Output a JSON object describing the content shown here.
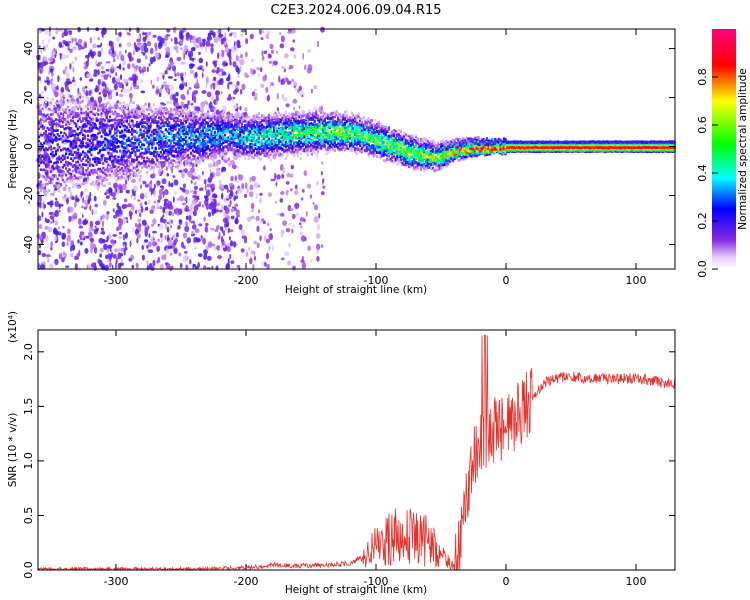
{
  "title": "C2E3.2024.006.09.04.R15",
  "chart_data": [
    {
      "type": "heatmap",
      "xlabel": "Height of straight line (km)",
      "ylabel": "Frequency (Hz)",
      "xlim": [
        -360,
        130
      ],
      "ylim": [
        -50,
        48
      ],
      "xticks": [
        -300,
        -200,
        -100,
        0,
        100
      ],
      "yticks": [
        -40,
        -20,
        0,
        20,
        40
      ],
      "colorbar": {
        "label": "Normalized spectral amplitude",
        "range": [
          0.0,
          1.0
        ],
        "ticks": [
          0.0,
          0.2,
          0.4,
          0.6,
          0.8
        ]
      },
      "signal_band": [
        {
          "x": -360,
          "center": 0,
          "width": 48,
          "amp": 0.2
        },
        {
          "x": -215,
          "center": 5,
          "width": 15,
          "amp": 0.35
        },
        {
          "x": -195,
          "center": 4,
          "width": 16,
          "amp": 0.4
        },
        {
          "x": -150,
          "center": 6,
          "width": 14,
          "amp": 0.5
        },
        {
          "x": -120,
          "center": 6,
          "width": 12,
          "amp": 0.55
        },
        {
          "x": -100,
          "center": 3,
          "width": 11,
          "amp": 0.55
        },
        {
          "x": -75,
          "center": -2,
          "width": 10,
          "amp": 0.6
        },
        {
          "x": -55,
          "center": -4,
          "width": 8,
          "amp": 0.6
        },
        {
          "x": -35,
          "center": -1,
          "width": 5,
          "amp": 0.75
        },
        {
          "x": -20,
          "center": 0,
          "width": 4,
          "amp": 0.9
        },
        {
          "x": 0,
          "center": 0,
          "width": 3,
          "amp": 0.92
        },
        {
          "x": 50,
          "center": 0,
          "width": 3,
          "amp": 0.95
        },
        {
          "x": 130,
          "center": 0,
          "width": 3,
          "amp": 0.95
        }
      ]
    },
    {
      "type": "line",
      "xlabel": "Height of straight line (km)",
      "ylabel": "SNR (10 * v/v)",
      "yscale_label": "(x10⁴)",
      "xlim": [
        -360,
        130
      ],
      "ylim": [
        0.0,
        2.2
      ],
      "xticks": [
        -300,
        -200,
        -100,
        0,
        100
      ],
      "yticks": [
        0.0,
        0.5,
        1.0,
        1.5,
        2.0
      ],
      "series": [
        {
          "color": "#e8302b",
          "x": [
            -360,
            -300,
            -250,
            -200,
            -190,
            -180,
            -170,
            -150,
            -120,
            -110,
            -100,
            -90,
            -80,
            -70,
            -60,
            -55,
            -50,
            -45,
            -40,
            -35,
            -30,
            -25,
            -20,
            -15,
            -10,
            -5,
            0,
            5,
            10,
            15,
            20,
            25,
            30,
            40,
            50,
            60,
            80,
            100,
            120,
            130
          ],
          "y": [
            0.01,
            0.01,
            0.01,
            0.02,
            0.03,
            0.05,
            0.04,
            0.04,
            0.06,
            0.12,
            0.22,
            0.28,
            0.32,
            0.3,
            0.28,
            0.22,
            0.14,
            0.08,
            0.05,
            0.2,
            0.7,
            1.0,
            1.15,
            1.25,
            1.3,
            1.28,
            1.3,
            1.35,
            1.42,
            1.5,
            1.58,
            1.65,
            1.72,
            1.76,
            1.78,
            1.76,
            1.75,
            1.76,
            1.72,
            1.71
          ]
        }
      ]
    }
  ]
}
